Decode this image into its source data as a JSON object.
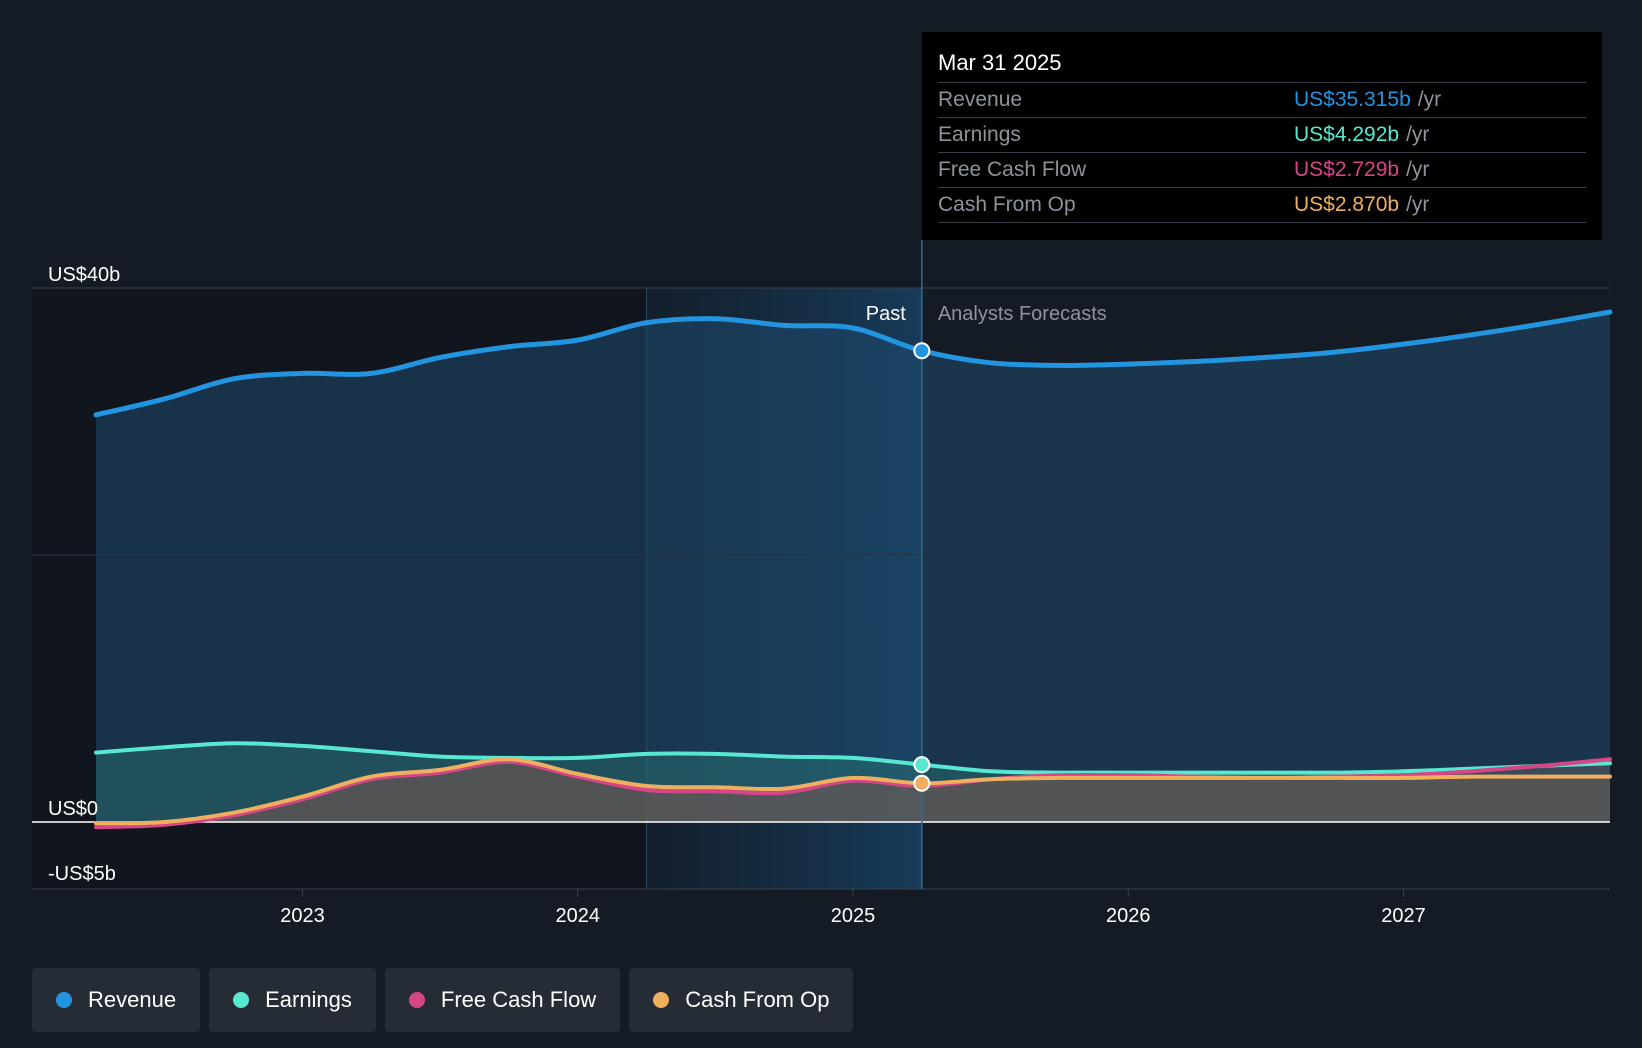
{
  "chart_data": {
    "type": "area",
    "y_axis": {
      "labels": [
        "US$40b",
        "US$0",
        "-US$5b"
      ],
      "ylim": [
        -5,
        40
      ]
    },
    "x_axis": {
      "ticks": [
        "2023",
        "2024",
        "2025",
        "2026",
        "2027"
      ],
      "xlim": [
        2022.25,
        2027.75
      ]
    },
    "divider": {
      "x": 2025.25,
      "past_label": "Past",
      "forecast_label": "Analysts Forecasts"
    },
    "series": [
      {
        "name": "Revenue",
        "color": "#2394df",
        "points": [
          [
            2022.25,
            30.5
          ],
          [
            2022.5,
            31.7
          ],
          [
            2022.75,
            33.2
          ],
          [
            2023.0,
            33.6
          ],
          [
            2023.25,
            33.6
          ],
          [
            2023.5,
            34.8
          ],
          [
            2023.75,
            35.6
          ],
          [
            2024.0,
            36.1
          ],
          [
            2024.25,
            37.4
          ],
          [
            2024.5,
            37.7
          ],
          [
            2024.75,
            37.2
          ],
          [
            2025.0,
            37.0
          ],
          [
            2025.25,
            35.3
          ],
          [
            2025.5,
            34.4
          ],
          [
            2025.75,
            34.2
          ],
          [
            2026.0,
            34.3
          ],
          [
            2026.25,
            34.5
          ],
          [
            2026.5,
            34.8
          ],
          [
            2026.75,
            35.2
          ],
          [
            2027.0,
            35.8
          ],
          [
            2027.25,
            36.5
          ],
          [
            2027.5,
            37.3
          ],
          [
            2027.75,
            38.2
          ]
        ]
      },
      {
        "name": "Earnings",
        "color": "#58e7d1",
        "points": [
          [
            2022.25,
            5.2
          ],
          [
            2022.5,
            5.6
          ],
          [
            2022.75,
            5.9
          ],
          [
            2023.0,
            5.7
          ],
          [
            2023.25,
            5.3
          ],
          [
            2023.5,
            4.9
          ],
          [
            2023.75,
            4.8
          ],
          [
            2024.0,
            4.8
          ],
          [
            2024.25,
            5.1
          ],
          [
            2024.5,
            5.1
          ],
          [
            2024.75,
            4.9
          ],
          [
            2025.0,
            4.8
          ],
          [
            2025.25,
            4.3
          ],
          [
            2025.5,
            3.8
          ],
          [
            2025.75,
            3.7
          ],
          [
            2026.0,
            3.7
          ],
          [
            2026.25,
            3.7
          ],
          [
            2026.5,
            3.7
          ],
          [
            2026.75,
            3.7
          ],
          [
            2027.0,
            3.8
          ],
          [
            2027.25,
            4.0
          ],
          [
            2027.5,
            4.2
          ],
          [
            2027.75,
            4.4
          ]
        ]
      },
      {
        "name": "Free Cash Flow",
        "color": "#d54687",
        "points": [
          [
            2022.25,
            -0.4
          ],
          [
            2022.5,
            -0.2
          ],
          [
            2022.75,
            0.5
          ],
          [
            2023.0,
            1.7
          ],
          [
            2023.25,
            3.2
          ],
          [
            2023.5,
            3.7
          ],
          [
            2023.75,
            4.5
          ],
          [
            2024.0,
            3.4
          ],
          [
            2024.25,
            2.4
          ],
          [
            2024.5,
            2.3
          ],
          [
            2024.75,
            2.2
          ],
          [
            2025.0,
            3.1
          ],
          [
            2025.25,
            2.7
          ],
          [
            2025.5,
            3.2
          ],
          [
            2025.75,
            3.5
          ],
          [
            2026.0,
            3.5
          ],
          [
            2026.25,
            3.4
          ],
          [
            2026.5,
            3.3
          ],
          [
            2026.75,
            3.4
          ],
          [
            2027.0,
            3.5
          ],
          [
            2027.25,
            3.8
          ],
          [
            2027.5,
            4.2
          ],
          [
            2027.75,
            4.7
          ]
        ]
      },
      {
        "name": "Cash From Op",
        "color": "#efaf5f",
        "points": [
          [
            2022.25,
            -0.1
          ],
          [
            2022.5,
            0.0
          ],
          [
            2022.75,
            0.7
          ],
          [
            2023.0,
            1.9
          ],
          [
            2023.25,
            3.4
          ],
          [
            2023.5,
            3.9
          ],
          [
            2023.75,
            4.7
          ],
          [
            2024.0,
            3.6
          ],
          [
            2024.25,
            2.7
          ],
          [
            2024.5,
            2.6
          ],
          [
            2024.75,
            2.5
          ],
          [
            2025.0,
            3.3
          ],
          [
            2025.25,
            2.9
          ],
          [
            2025.5,
            3.2
          ],
          [
            2025.75,
            3.3
          ],
          [
            2026.0,
            3.3
          ],
          [
            2026.25,
            3.3
          ],
          [
            2026.5,
            3.3
          ],
          [
            2026.75,
            3.3
          ],
          [
            2027.0,
            3.3
          ],
          [
            2027.25,
            3.4
          ],
          [
            2027.5,
            3.4
          ],
          [
            2027.75,
            3.4
          ]
        ]
      }
    ],
    "tooltip": {
      "date": "Mar 31 2025",
      "rows": [
        {
          "label": "Revenue",
          "value": "US$35.315b",
          "unit": "/yr",
          "color": "#2394df"
        },
        {
          "label": "Earnings",
          "value": "US$4.292b",
          "unit": "/yr",
          "color": "#58e7d1"
        },
        {
          "label": "Free Cash Flow",
          "value": "US$2.729b",
          "unit": "/yr",
          "color": "#d54687"
        },
        {
          "label": "Cash From Op",
          "value": "US$2.870b",
          "unit": "/yr",
          "color": "#efaf5f"
        }
      ]
    }
  },
  "legend": [
    {
      "label": "Revenue",
      "color": "#2394df"
    },
    {
      "label": "Earnings",
      "color": "#58e7d1"
    },
    {
      "label": "Free Cash Flow",
      "color": "#d54687"
    },
    {
      "label": "Cash From Op",
      "color": "#efaf5f"
    }
  ]
}
